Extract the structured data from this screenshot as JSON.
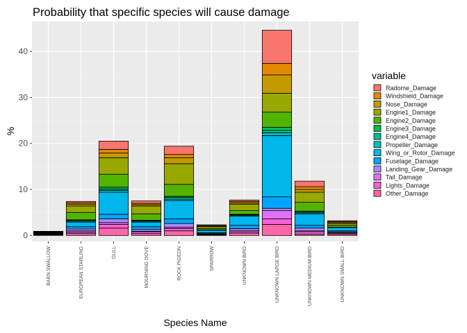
{
  "chart_data": {
    "type": "bar",
    "stacked": true,
    "title": "Probability that specific species will cause damage",
    "xlabel": "Species Name",
    "ylabel": "%",
    "ylim": [
      -1.3,
      46.5
    ],
    "yticks": [
      0,
      10,
      20,
      30,
      40
    ],
    "ytick_labels": [
      "0",
      "10",
      "20",
      "30",
      "40"
    ],
    "grid": true,
    "legend_title": "variable",
    "legend_position": "right",
    "categories": [
      "BARN SWALLOW",
      "EUROPEAN STARLING",
      "GULL",
      "MOURNING DOVE",
      "ROCK PIGEON",
      "SPARROW",
      "UNKNOWN BIRD",
      "UNKNOWN LARGE BIRD",
      "UNKNOWN MEDIUM BIRD",
      "UNKNOWN SMALL BIRD"
    ],
    "series": [
      {
        "name": "Radome_Damage",
        "color": "#F8766D",
        "values": [
          0,
          0.3,
          1.8,
          0.5,
          1.8,
          0.1,
          0.3,
          7.2,
          1.2,
          0.2
        ]
      },
      {
        "name": "Windshield_Damage",
        "color": "#E38900",
        "values": [
          0,
          0.3,
          0.8,
          0.3,
          0.7,
          0.2,
          0.3,
          2.5,
          0.6,
          0.2
        ]
      },
      {
        "name": "Nose_Damage",
        "color": "#C49A00",
        "values": [
          0,
          0.4,
          1.0,
          0.3,
          1.3,
          0.1,
          0.3,
          4.0,
          0.6,
          0.2
        ]
      },
      {
        "name": "Engine1_Damage",
        "color": "#99A800",
        "values": [
          0,
          1.4,
          3.6,
          1.7,
          4.5,
          0.4,
          1.4,
          4.1,
          2.2,
          0.4
        ]
      },
      {
        "name": "Engine2_Damage",
        "color": "#53B400",
        "values": [
          0,
          1.6,
          2.8,
          1.4,
          2.6,
          0.3,
          0.8,
          3.3,
          1.9,
          0.4
        ]
      },
      {
        "name": "Engine3_Damage",
        "color": "#00BC56",
        "values": [
          0,
          0.1,
          0.4,
          0.1,
          0.2,
          0,
          0.1,
          0.7,
          0.2,
          0
        ]
      },
      {
        "name": "Engine4_Damage",
        "color": "#00C094",
        "values": [
          0,
          0.2,
          0.3,
          0.1,
          0.4,
          0,
          0.1,
          0.5,
          0.2,
          0
        ]
      },
      {
        "name": "Propeller_Damage",
        "color": "#00BFC4",
        "values": [
          0,
          0.2,
          0.4,
          0.2,
          0.3,
          0.1,
          0.2,
          0.6,
          0.2,
          0.1
        ]
      },
      {
        "name": "Wing_or_Rotor_Damage",
        "color": "#00B6EB",
        "values": [
          0,
          1.0,
          4.8,
          1.0,
          4.0,
          0.5,
          2.0,
          13.3,
          2.5,
          0.7
        ]
      },
      {
        "name": "Fuselage_Damage",
        "color": "#06A4FF",
        "values": [
          0,
          0.5,
          1.0,
          0.6,
          1.0,
          0.2,
          0.7,
          2.5,
          0.6,
          0.2
        ]
      },
      {
        "name": "Landing_Gear_Damage",
        "color": "#A58AFF",
        "values": [
          0,
          0.4,
          0.8,
          0.4,
          0.8,
          0.1,
          0.4,
          0.5,
          0.6,
          0.2
        ]
      },
      {
        "name": "Tail_Damage",
        "color": "#DF70F8",
        "values": [
          0,
          0.3,
          0.4,
          0.1,
          0.3,
          0.1,
          0.3,
          1.8,
          0.2,
          0.1
        ]
      },
      {
        "name": "Lights_Damage",
        "color": "#FB61D7",
        "values": [
          0,
          0.3,
          0.8,
          0.4,
          0.5,
          0.1,
          0.3,
          1.2,
          0.5,
          0.2
        ]
      },
      {
        "name": "Other_Damage",
        "color": "#FF66A8",
        "values": [
          0.9,
          0.4,
          1.6,
          0.4,
          1.0,
          0.1,
          0.5,
          2.4,
          0.3,
          0.3
        ]
      }
    ]
  },
  "colors": {
    "panel_background": "#EBEBEB",
    "grid_major": "#FFFFFF",
    "grid_minor": "#F4F4F4",
    "bar_outline": "#000000",
    "barn_swallow_bar": "#000000"
  }
}
